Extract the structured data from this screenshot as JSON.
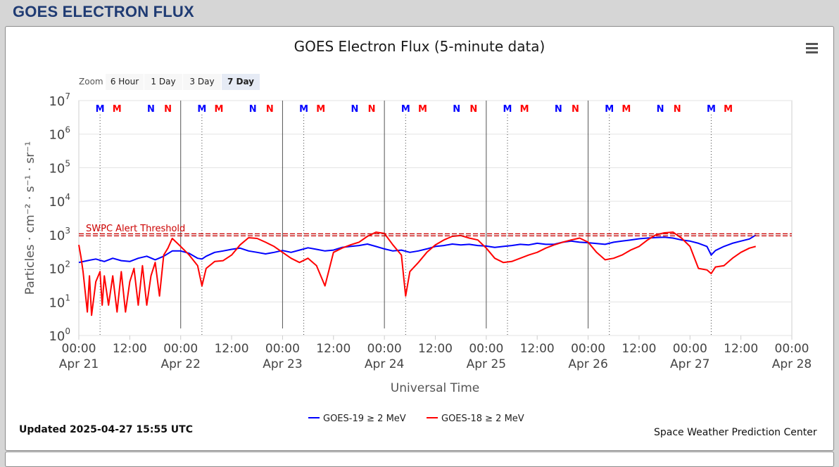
{
  "page": {
    "heading": "GOES ELECTRON FLUX",
    "updated": "Updated 2025-04-27 15:55 UTC",
    "credit": "Space Weather Prediction Center",
    "menu_icon": "hamburger-menu-icon"
  },
  "zoom": {
    "label": "Zoom",
    "buttons": [
      {
        "label": "6 Hour",
        "active": false
      },
      {
        "label": "1 Day",
        "active": false
      },
      {
        "label": "3 Day",
        "active": false
      },
      {
        "label": "7 Day",
        "active": true
      }
    ]
  },
  "chart_data": {
    "type": "line",
    "title": "GOES Electron Flux (5-minute data)",
    "xlabel": "Universal Time",
    "ylabel": "Particles · cm⁻² · s⁻¹ · sr⁻¹",
    "x_unit": "hours since 00:00 UTC Apr 21",
    "x_range": [
      0,
      168
    ],
    "y_scale": "log",
    "ylim": [
      1,
      10000000
    ],
    "grid": true,
    "legend_position": "bottom-center",
    "x_ticks": [
      {
        "time": "00:00",
        "date": "Apr 21",
        "x": 0
      },
      {
        "time": "12:00",
        "date": "",
        "x": 12
      },
      {
        "time": "00:00",
        "date": "Apr 22",
        "x": 24
      },
      {
        "time": "12:00",
        "date": "",
        "x": 36
      },
      {
        "time": "00:00",
        "date": "Apr 23",
        "x": 48
      },
      {
        "time": "12:00",
        "date": "",
        "x": 60
      },
      {
        "time": "00:00",
        "date": "Apr 24",
        "x": 72
      },
      {
        "time": "12:00",
        "date": "",
        "x": 84
      },
      {
        "time": "00:00",
        "date": "Apr 25",
        "x": 96
      },
      {
        "time": "12:00",
        "date": "",
        "x": 108
      },
      {
        "time": "00:00",
        "date": "Apr 26",
        "x": 120
      },
      {
        "time": "12:00",
        "date": "",
        "x": 132
      },
      {
        "time": "00:00",
        "date": "Apr 27",
        "x": 144
      },
      {
        "time": "12:00",
        "date": "",
        "x": 156
      },
      {
        "time": "00:00",
        "date": "Apr 28",
        "x": 168
      }
    ],
    "y_ticks": [
      {
        "base": "10",
        "exp": "0",
        "value": 1
      },
      {
        "base": "10",
        "exp": "1",
        "value": 10
      },
      {
        "base": "10",
        "exp": "2",
        "value": 100
      },
      {
        "base": "10",
        "exp": "3",
        "value": 1000
      },
      {
        "base": "10",
        "exp": "4",
        "value": 10000
      },
      {
        "base": "10",
        "exp": "5",
        "value": 100000
      },
      {
        "base": "10",
        "exp": "6",
        "value": 1000000
      },
      {
        "base": "10",
        "exp": "7",
        "value": 10000000
      }
    ],
    "threshold": {
      "label": "SWPC Alert Threshold",
      "value": 1000,
      "color": "#cc0000"
    },
    "midnight_lines": [
      24,
      48,
      72,
      96,
      120
    ],
    "noon_lines": [
      5,
      29,
      53,
      77,
      101,
      125,
      149
    ],
    "markers": [
      {
        "label": "M",
        "x": 5,
        "color": "#0000ff"
      },
      {
        "label": "M",
        "x": 9,
        "color": "#ff0000"
      },
      {
        "label": "N",
        "x": 17,
        "color": "#0000ff"
      },
      {
        "label": "N",
        "x": 21,
        "color": "#ff0000"
      },
      {
        "label": "M",
        "x": 29,
        "color": "#0000ff"
      },
      {
        "label": "M",
        "x": 33,
        "color": "#ff0000"
      },
      {
        "label": "N",
        "x": 41,
        "color": "#0000ff"
      },
      {
        "label": "N",
        "x": 45,
        "color": "#ff0000"
      },
      {
        "label": "M",
        "x": 53,
        "color": "#0000ff"
      },
      {
        "label": "M",
        "x": 57,
        "color": "#ff0000"
      },
      {
        "label": "N",
        "x": 65,
        "color": "#0000ff"
      },
      {
        "label": "N",
        "x": 69,
        "color": "#ff0000"
      },
      {
        "label": "M",
        "x": 77,
        "color": "#0000ff"
      },
      {
        "label": "M",
        "x": 81,
        "color": "#ff0000"
      },
      {
        "label": "N",
        "x": 89,
        "color": "#0000ff"
      },
      {
        "label": "N",
        "x": 93,
        "color": "#ff0000"
      },
      {
        "label": "M",
        "x": 101,
        "color": "#0000ff"
      },
      {
        "label": "M",
        "x": 105,
        "color": "#ff0000"
      },
      {
        "label": "N",
        "x": 113,
        "color": "#0000ff"
      },
      {
        "label": "N",
        "x": 117,
        "color": "#ff0000"
      },
      {
        "label": "M",
        "x": 125,
        "color": "#0000ff"
      },
      {
        "label": "M",
        "x": 129,
        "color": "#ff0000"
      },
      {
        "label": "N",
        "x": 137,
        "color": "#0000ff"
      },
      {
        "label": "N",
        "x": 141,
        "color": "#ff0000"
      },
      {
        "label": "M",
        "x": 149,
        "color": "#0000ff"
      },
      {
        "label": "M",
        "x": 153,
        "color": "#ff0000"
      }
    ],
    "series": [
      {
        "name": "GOES-19 ≥ 2 MeV",
        "color": "#0000ff",
        "x": [
          0,
          2,
          4,
          6,
          8,
          10,
          12,
          14,
          16,
          18,
          20,
          22,
          24,
          26,
          28,
          29,
          30,
          32,
          34,
          36,
          38,
          40,
          42,
          44,
          46,
          48,
          50,
          52,
          54,
          56,
          58,
          60,
          62,
          64,
          66,
          68,
          70,
          72,
          74,
          76,
          78,
          80,
          82,
          84,
          86,
          88,
          90,
          92,
          94,
          96,
          98,
          100,
          102,
          104,
          106,
          108,
          110,
          112,
          114,
          116,
          118,
          120,
          122,
          124,
          126,
          128,
          130,
          132,
          134,
          136,
          138,
          140,
          142,
          144,
          146,
          148,
          149,
          150,
          152,
          154,
          156,
          158,
          159.5
        ],
        "y": [
          150,
          170,
          190,
          160,
          200,
          170,
          160,
          200,
          230,
          180,
          230,
          330,
          330,
          280,
          200,
          190,
          230,
          300,
          330,
          370,
          400,
          330,
          300,
          270,
          300,
          340,
          300,
          350,
          410,
          370,
          330,
          350,
          420,
          450,
          480,
          530,
          450,
          380,
          330,
          350,
          300,
          330,
          380,
          450,
          480,
          530,
          500,
          520,
          480,
          460,
          420,
          450,
          480,
          520,
          500,
          560,
          520,
          520,
          600,
          650,
          600,
          580,
          550,
          520,
          600,
          650,
          700,
          760,
          800,
          830,
          850,
          800,
          700,
          650,
          560,
          450,
          250,
          340,
          450,
          560,
          650,
          750,
          980
        ]
      },
      {
        "name": "GOES-18 ≥ 2 MeV",
        "color": "#ff0000",
        "x": [
          0,
          0.5,
          1,
          2,
          2.5,
          3,
          4,
          5,
          5.5,
          6,
          7,
          8,
          9,
          10,
          11,
          12,
          13,
          14,
          15,
          16,
          17,
          18,
          19,
          20,
          21,
          22,
          24,
          26,
          28,
          29,
          30,
          32,
          34,
          36,
          38,
          40,
          42,
          44,
          46,
          48,
          50,
          52,
          54,
          56,
          58,
          60,
          62,
          64,
          66,
          68,
          70,
          72,
          74,
          76,
          77,
          78,
          80,
          82,
          84,
          86,
          88,
          90,
          92,
          94,
          96,
          98,
          100,
          102,
          104,
          106,
          108,
          110,
          112,
          114,
          116,
          118,
          120,
          122,
          124,
          126,
          128,
          130,
          132,
          134,
          136,
          138,
          140,
          142,
          144,
          146,
          148,
          149,
          150,
          152,
          154,
          156,
          158,
          159.5
        ],
        "y": [
          500,
          220,
          80,
          5,
          60,
          4,
          40,
          80,
          8,
          60,
          8,
          60,
          5,
          80,
          5,
          40,
          100,
          8,
          120,
          8,
          60,
          150,
          15,
          250,
          400,
          780,
          450,
          250,
          120,
          30,
          100,
          160,
          170,
          250,
          500,
          820,
          780,
          600,
          450,
          300,
          200,
          150,
          200,
          120,
          30,
          300,
          400,
          500,
          600,
          900,
          1200,
          1100,
          500,
          250,
          15,
          80,
          150,
          300,
          500,
          700,
          900,
          950,
          800,
          700,
          400,
          200,
          150,
          160,
          200,
          250,
          300,
          400,
          500,
          600,
          700,
          800,
          600,
          300,
          180,
          200,
          250,
          350,
          450,
          700,
          1000,
          1150,
          1200,
          800,
          450,
          100,
          90,
          70,
          110,
          120,
          200,
          300,
          400,
          450
        ]
      }
    ]
  }
}
